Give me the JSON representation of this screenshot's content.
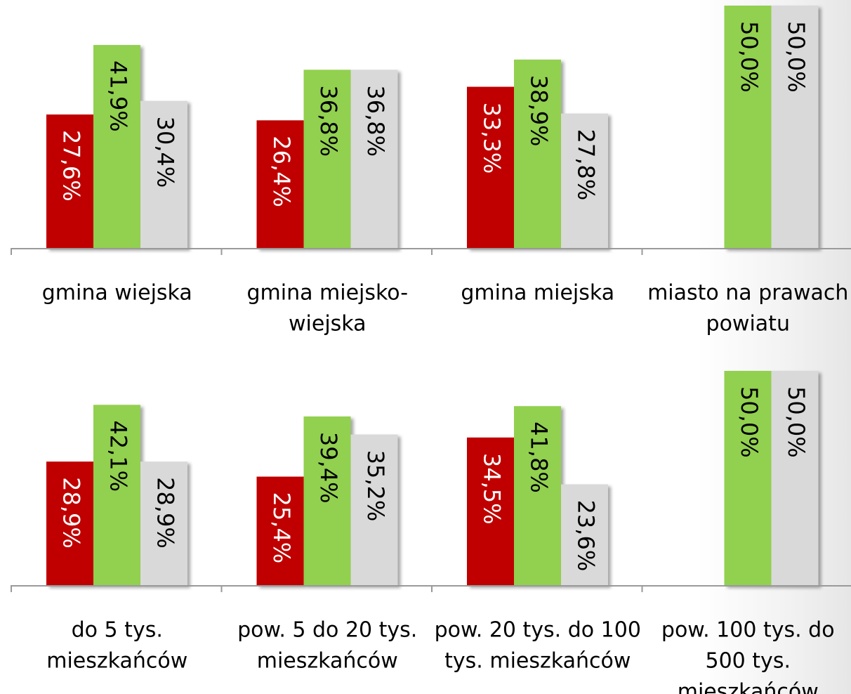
{
  "colors": {
    "red": "#c00000",
    "green": "#92d050",
    "gray": "#d9d9d9",
    "axis": "#9a9a9a"
  },
  "chart_data": [
    {
      "type": "bar",
      "categories": [
        [
          "gmina wiejska"
        ],
        [
          "gmina miejsko-",
          "wiejska"
        ],
        [
          "gmina miejska"
        ],
        [
          "miasto na prawach",
          "powiatu"
        ]
      ],
      "series": [
        {
          "color": "red",
          "values": [
            27.6,
            26.4,
            33.3,
            null
          ],
          "labels": [
            "27,6%",
            "26,4%",
            "33,3%",
            ""
          ]
        },
        {
          "color": "green",
          "values": [
            41.9,
            36.8,
            38.9,
            50.0
          ],
          "labels": [
            "41,9%",
            "36,8%",
            "38,9%",
            "50,0%"
          ]
        },
        {
          "color": "gray",
          "values": [
            30.4,
            36.8,
            27.8,
            50.0
          ],
          "labels": [
            "30,4%",
            "36,8%",
            "27,8%",
            "50,0%"
          ]
        }
      ],
      "ylim": [
        0,
        50
      ]
    },
    {
      "type": "bar",
      "categories": [
        [
          "do 5 tys.",
          "mieszkańców"
        ],
        [
          "pow. 5 do 20 tys.",
          "mieszkańców"
        ],
        [
          "pow. 20 tys. do 100",
          "tys. mieszkańców"
        ],
        [
          "pow. 100 tys. do",
          "500 tys.",
          "mieszkańców"
        ]
      ],
      "series": [
        {
          "color": "red",
          "values": [
            28.9,
            25.4,
            34.5,
            null
          ],
          "labels": [
            "28,9%",
            "25,4%",
            "34,5%",
            ""
          ]
        },
        {
          "color": "green",
          "values": [
            42.1,
            39.4,
            41.8,
            50.0
          ],
          "labels": [
            "42,1%",
            "39,4%",
            "41,8%",
            "50,0%"
          ]
        },
        {
          "color": "gray",
          "values": [
            28.9,
            35.2,
            23.6,
            50.0
          ],
          "labels": [
            "28,9%",
            "35,2%",
            "23,6%",
            "50,0%"
          ]
        }
      ],
      "ylim": [
        0,
        50
      ]
    }
  ]
}
